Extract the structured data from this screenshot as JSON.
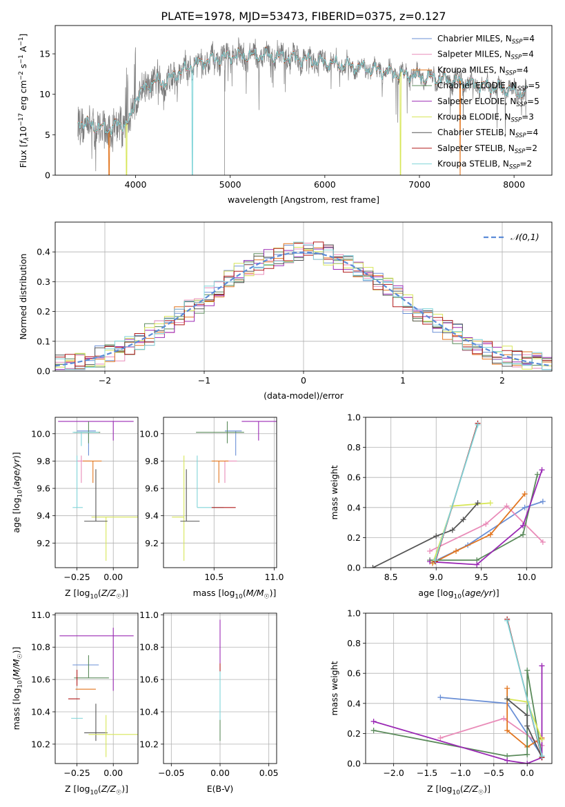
{
  "figure_title": "PLATE=1978, MJD=53473, FIBERID=0375, z=0.127",
  "colors": {
    "Chabrier MILES": "#6a8fd6",
    "Salpeter MILES": "#e98bb8",
    "Kroupa MILES": "#e2751e",
    "Chabrier ELODIE": "#5a8a5a",
    "Salpeter ELODIE": "#9a28b4",
    "Kroupa ELODIE": "#d7e657",
    "Chabrier STELIB": "#555555",
    "Salpeter STELIB": "#b01818",
    "Kroupa STELIB": "#7fd4d8"
  },
  "chart_data": [
    {
      "id": "spectrum",
      "type": "line",
      "xlabel": "wavelength [Angstrom, rest frame]",
      "ylabel": "Flux [f_λ10^−17 erg cm^−2 s^−1 A^−1]",
      "xlim": [
        3150,
        8400
      ],
      "ylim": [
        0,
        18.5
      ],
      "xticks": [
        4000,
        5000,
        6000,
        7000,
        8000
      ],
      "yticks": [
        0,
        5,
        10,
        15
      ],
      "grid": false,
      "legend_position": "top-right",
      "legend": [
        {
          "name": "Chabrier MILES",
          "nssp": "4"
        },
        {
          "name": "Salpeter MILES",
          "nssp": "4"
        },
        {
          "name": "Kroupa MILES",
          "nssp": "4"
        },
        {
          "name": "Chabrier ELODIE",
          "nssp": "5"
        },
        {
          "name": "Salpeter ELODIE",
          "nssp": "5"
        },
        {
          "name": "Kroupa ELODIE",
          "nssp": "3"
        },
        {
          "name": "Chabrier STELIB",
          "nssp": "4"
        },
        {
          "name": "Salpeter STELIB",
          "nssp": "2"
        },
        {
          "name": "Kroupa STELIB",
          "nssp": "2"
        }
      ],
      "continuum": {
        "x": [
          3390,
          3500,
          3600,
          3700,
          3800,
          3900,
          3950,
          4000,
          4100,
          4200,
          4300,
          4400,
          4600,
          4800,
          5000,
          5200,
          5400,
          5600,
          5800,
          6000,
          6200,
          6400,
          6600,
          6800,
          7000,
          7200,
          7400,
          7600,
          7800,
          8000,
          8130
        ],
        "y": [
          6.6,
          6.3,
          6.0,
          5.6,
          6.2,
          6.4,
          7.0,
          9.6,
          10.8,
          11.6,
          11.5,
          12.2,
          13.6,
          14.3,
          14.7,
          14.8,
          14.8,
          14.6,
          14.3,
          14.0,
          13.6,
          13.3,
          12.9,
          12.5,
          12.2,
          11.9,
          11.6,
          11.2,
          10.8,
          10.4,
          10.0
        ]
      },
      "model_dropouts": [
        {
          "series": "Kroupa MILES",
          "x": 3720
        },
        {
          "series": "Kroupa ELODIE",
          "x": 3905
        },
        {
          "series": "Kroupa STELIB",
          "x": 4600
        },
        {
          "series": "Kroupa ELODIE",
          "x": 6800
        },
        {
          "series": "Kroupa MILES",
          "x": 7430
        }
      ]
    },
    {
      "id": "residuals",
      "type": "step",
      "xlabel": "(data-model)/error",
      "ylabel": "Normed distribution",
      "xlim": [
        -2.5,
        2.5
      ],
      "ylim": [
        0,
        0.5
      ],
      "xticks": [
        -2,
        -1,
        0,
        1,
        2
      ],
      "yticks": [
        0.0,
        0.1,
        0.2,
        0.3,
        0.4
      ],
      "grid": true,
      "bin_width": 0.1,
      "reference_curve": {
        "label": "𝒩(0,1)",
        "style": "dashed",
        "color": "#5b8bd8"
      },
      "legend_position": "top-right"
    },
    {
      "id": "age-vs-Z",
      "type": "errorbar",
      "xlabel": "Z [log₁₀(Z/Z☉)]",
      "ylabel": "age  [log₁₀(age/yr)]",
      "xlim": [
        -0.4,
        0.17
      ],
      "ylim": [
        9.02,
        10.12
      ],
      "xticks": [
        -0.25,
        0.0
      ],
      "yticks": [
        9.2,
        9.4,
        9.6,
        9.8,
        10.0
      ],
      "grid": true,
      "points": [
        {
          "series": "Salpeter ELODIE",
          "x": 0.0,
          "y": 10.09,
          "xerr": [
            0.38,
            0.14
          ],
          "yerr": [
            0.14,
            0.0
          ]
        },
        {
          "series": "Chabrier MILES",
          "x": -0.17,
          "y": 10.02,
          "xerr": [
            0.08,
            0.05
          ],
          "yerr": [
            0.18,
            0.0
          ]
        },
        {
          "series": "Chabrier ELODIE",
          "x": -0.17,
          "y": 10.01,
          "xerr": [
            0.1,
            0.08
          ],
          "yerr": [
            0.08,
            0.08
          ]
        },
        {
          "series": "Kroupa STELIB",
          "x": -0.22,
          "y": 10.01,
          "xerr": [
            0.06,
            0.12
          ],
          "yerr": [
            0.1,
            0.0
          ]
        },
        {
          "series": "Salpeter MILES",
          "x": -0.22,
          "y": 9.8,
          "xerr": [
            0.03,
            0.06
          ],
          "yerr": [
            0.16,
            0.04
          ]
        },
        {
          "series": "Kroupa MILES",
          "x": -0.14,
          "y": 9.8,
          "xerr": [
            0.07,
            0.06
          ],
          "yerr": [
            0.16,
            0.0
          ]
        },
        {
          "series": "Kroupa ELODIE",
          "x": -0.05,
          "y": 9.39,
          "xerr": [
            0.1,
            0.22
          ],
          "yerr": [
            0.32,
            0.0
          ]
        },
        {
          "series": "Chabrier STELIB",
          "x": -0.12,
          "y": 9.36,
          "xerr": [
            0.08,
            0.08
          ],
          "yerr": [
            0.0,
            0.38
          ]
        },
        {
          "series": "Kroupa STELIB",
          "x": -0.25,
          "y": 9.46,
          "xerr": [
            0.03,
            0.04
          ],
          "yerr": [
            0.0,
            0.38
          ]
        }
      ]
    },
    {
      "id": "age-vs-mass",
      "type": "errorbar",
      "xlabel": "mass [log₁₀(M/M☉)]",
      "ylabel": "",
      "xlim": [
        10.08,
        11.02
      ],
      "ylim": [
        9.02,
        10.12
      ],
      "xticks": [
        10.5,
        11.0
      ],
      "yticks": [
        9.2,
        9.4,
        9.6,
        9.8,
        10.0
      ],
      "grid": true,
      "points": [
        {
          "series": "Salpeter ELODIE",
          "x": 10.87,
          "y": 10.09,
          "xerr": [
            0.14,
            0.22
          ],
          "yerr": [
            0.14,
            0.0
          ]
        },
        {
          "series": "Chabrier MILES",
          "x": 10.68,
          "y": 10.02,
          "xerr": [
            0.09,
            0.05
          ],
          "yerr": [
            0.18,
            0.0
          ]
        },
        {
          "series": "Chabrier ELODIE",
          "x": 10.61,
          "y": 10.01,
          "xerr": [
            0.26,
            0.14
          ],
          "yerr": [
            0.08,
            0.08
          ]
        },
        {
          "series": "Salpeter MILES",
          "x": 10.59,
          "y": 9.8,
          "xerr": [
            0.0,
            0.1
          ],
          "yerr": [
            0.16,
            0.0
          ]
        },
        {
          "series": "Kroupa MILES",
          "x": 10.54,
          "y": 9.8,
          "xerr": [
            0.06,
            0.08
          ],
          "yerr": [
            0.16,
            0.0
          ]
        },
        {
          "series": "Kroupa ELODIE",
          "x": 10.25,
          "y": 9.39,
          "xerr": [
            0.1,
            0.0
          ],
          "yerr": [
            0.32,
            0.45
          ]
        },
        {
          "series": "Chabrier STELIB",
          "x": 10.27,
          "y": 9.36,
          "xerr": [
            0.05,
            0.11
          ],
          "yerr": [
            0.0,
            0.38
          ]
        },
        {
          "series": "Kroupa STELIB",
          "x": 10.36,
          "y": 9.46,
          "xerr": [
            0.0,
            0.22
          ],
          "yerr": [
            0.0,
            0.38
          ]
        },
        {
          "series": "Salpeter STELIB",
          "x": 10.48,
          "y": 9.46,
          "xerr": [
            0.0,
            0.2
          ],
          "yerr": [
            0.0,
            0.0
          ]
        }
      ]
    },
    {
      "id": "weight-vs-age",
      "type": "line",
      "xlabel": "age  [log₁₀(age/yr)]",
      "ylabel": "mass weight",
      "xlim": [
        8.22,
        10.28
      ],
      "ylim": [
        0.0,
        1.0
      ],
      "xticks": [
        8.5,
        9.0,
        9.5,
        10.0
      ],
      "yticks": [
        0.0,
        0.2,
        0.4,
        0.6,
        0.8,
        1.0
      ],
      "grid": true,
      "series": [
        {
          "name": "Chabrier MILES",
          "x": [
            8.97,
            9.35,
            9.98,
            10.18
          ],
          "y": [
            0.04,
            0.15,
            0.4,
            0.44
          ]
        },
        {
          "name": "Salpeter MILES",
          "x": [
            8.93,
            9.55,
            9.78,
            10.18
          ],
          "y": [
            0.11,
            0.29,
            0.41,
            0.17
          ]
        },
        {
          "name": "Kroupa MILES",
          "x": [
            8.96,
            9.22,
            9.6,
            9.98
          ],
          "y": [
            0.03,
            0.11,
            0.22,
            0.49
          ]
        },
        {
          "name": "Chabrier ELODIE",
          "x": [
            8.93,
            9.45,
            9.96,
            10.12
          ],
          "y": [
            0.05,
            0.05,
            0.22,
            0.62
          ]
        },
        {
          "name": "Salpeter ELODIE",
          "x": [
            8.93,
            9.45,
            9.96,
            10.17
          ],
          "y": [
            0.04,
            0.02,
            0.28,
            0.65
          ]
        },
        {
          "name": "Kroupa ELODIE",
          "x": [
            8.97,
            9.18,
            9.6
          ],
          "y": [
            0.04,
            0.41,
            0.43
          ]
        },
        {
          "name": "Chabrier STELIB",
          "x": [
            8.3,
            9.0,
            9.18,
            9.3,
            9.46
          ],
          "y": [
            0.0,
            0.21,
            0.25,
            0.32,
            0.43
          ]
        },
        {
          "name": "Salpeter STELIB",
          "x": [
            8.99,
            9.46
          ],
          "y": [
            0.04,
            0.96
          ]
        },
        {
          "name": "Kroupa STELIB",
          "x": [
            8.99,
            9.46
          ],
          "y": [
            0.05,
            0.95
          ]
        }
      ]
    },
    {
      "id": "mass-vs-Z",
      "type": "errorbar",
      "xlabel": "Z [log₁₀(Z/Z☉)]",
      "ylabel": "mass [log₁₀(M/M☉)]",
      "xlim": [
        -0.4,
        0.17
      ],
      "ylim": [
        10.08,
        11.01
      ],
      "xticks": [
        -0.25,
        0.0
      ],
      "yticks": [
        10.2,
        10.4,
        10.6,
        10.8,
        11.0
      ],
      "grid": true,
      "points": [
        {
          "series": "Salpeter ELODIE",
          "x": 0.0,
          "y": 10.87,
          "xerr": [
            0.37,
            0.14
          ],
          "yerr": [
            0.34,
            0.05
          ]
        },
        {
          "series": "Chabrier MILES",
          "x": -0.2,
          "y": 10.69,
          "xerr": [
            0.08,
            0.1
          ],
          "yerr": [
            0.0,
            0.0
          ]
        },
        {
          "series": "Chabrier ELODIE",
          "x": -0.17,
          "y": 10.61,
          "xerr": [
            0.1,
            0.14
          ],
          "yerr": [
            0.0,
            0.14
          ]
        },
        {
          "series": "Salpeter STELIB",
          "x": -0.25,
          "y": 10.62,
          "xerr": [
            0.0,
            0.0
          ],
          "yerr": [
            0.06,
            0.04
          ]
        },
        {
          "series": "Kroupa MILES",
          "x": -0.2,
          "y": 10.54,
          "xerr": [
            0.06,
            0.08
          ],
          "yerr": [
            0.0,
            0.0
          ]
        },
        {
          "series": "Salpeter STELIB",
          "x": -0.27,
          "y": 10.48,
          "xerr": [
            0.04,
            0.04
          ],
          "yerr": [
            0.0,
            0.0
          ]
        },
        {
          "series": "Kroupa STELIB",
          "x": -0.26,
          "y": 10.36,
          "xerr": [
            0.03,
            0.05
          ],
          "yerr": [
            0.0,
            0.0
          ]
        },
        {
          "series": "Chabrier STELIB",
          "x": -0.12,
          "y": 10.27,
          "xerr": [
            0.08,
            0.08
          ],
          "yerr": [
            0.05,
            0.18
          ]
        },
        {
          "series": "Kroupa ELODIE",
          "x": -0.05,
          "y": 10.26,
          "xerr": [
            0.12,
            0.22
          ],
          "yerr": [
            0.14,
            0.12
          ]
        }
      ]
    },
    {
      "id": "mass-vs-ebv",
      "type": "errorbar",
      "xlabel": "E(B-V)",
      "ylabel": "",
      "xlim": [
        -0.058,
        0.058
      ],
      "ylim": [
        10.08,
        11.01
      ],
      "xticks": [
        -0.05,
        0.0,
        0.05
      ],
      "yticks": [
        10.2,
        10.4,
        10.6,
        10.8,
        11.0
      ],
      "grid": true,
      "points": [
        {
          "series": "Salpeter ELODIE",
          "x": 0.0,
          "y": 10.7,
          "xerr": [
            0.0,
            0.0
          ],
          "yerr": [
            0.0,
            0.27
          ]
        },
        {
          "series": "Salpeter STELIB",
          "x": 0.0,
          "y": 10.7,
          "xerr": [
            0.0,
            0.0
          ],
          "yerr": [
            0.05,
            0.0
          ]
        },
        {
          "series": "Kroupa STELIB",
          "x": 0.0,
          "y": 10.55,
          "xerr": [
            0.0,
            0.0
          ],
          "yerr": [
            0.2,
            0.1
          ]
        },
        {
          "series": "Chabrier ELODIE",
          "x": 0.0,
          "y": 10.35,
          "xerr": [
            0.0,
            0.0
          ],
          "yerr": [
            0.13,
            0.0
          ]
        }
      ]
    },
    {
      "id": "weight-vs-Z",
      "type": "line",
      "xlabel": "Z [log₁₀(Z/Z☉)]",
      "ylabel": "mass weight",
      "xlim": [
        -2.42,
        0.37
      ],
      "ylim": [
        0.0,
        1.0
      ],
      "xticks": [
        -2.0,
        -1.5,
        -1.0,
        -0.5,
        0.0
      ],
      "yticks": [
        0.0,
        0.2,
        0.4,
        0.6,
        0.8,
        1.0
      ],
      "grid": true,
      "series": [
        {
          "name": "Chabrier MILES",
          "x": [
            -1.3,
            -0.3,
            0.22
          ],
          "y": [
            0.44,
            0.4,
            0.05
          ]
        },
        {
          "name": "Salpeter MILES",
          "x": [
            -1.3,
            -0.35,
            0.22
          ],
          "y": [
            0.17,
            0.3,
            0.12
          ]
        },
        {
          "name": "Kroupa MILES",
          "x": [
            -0.3,
            -0.3,
            0.0,
            0.22
          ],
          "y": [
            0.5,
            0.22,
            0.11,
            0.17
          ]
        },
        {
          "name": "Chabrier ELODIE",
          "x": [
            -2.3,
            -0.3,
            0.0,
            0.0,
            0.22
          ],
          "y": [
            0.22,
            0.05,
            0.06,
            0.62,
            0.05
          ]
        },
        {
          "name": "Salpeter ELODIE",
          "x": [
            -2.3,
            -0.3,
            0.0,
            0.22,
            0.22
          ],
          "y": [
            0.28,
            0.02,
            0.0,
            0.04,
            0.65
          ]
        },
        {
          "name": "Kroupa ELODIE",
          "x": [
            -0.3,
            0.0,
            0.22
          ],
          "y": [
            0.43,
            0.41,
            0.16
          ]
        },
        {
          "name": "Chabrier STELIB",
          "x": [
            -0.3,
            0.0,
            0.0,
            0.22
          ],
          "y": [
            0.43,
            0.32,
            0.25,
            0.04
          ]
        },
        {
          "name": "Salpeter STELIB",
          "x": [
            -0.3,
            0.22
          ],
          "y": [
            0.96,
            0.04
          ]
        },
        {
          "name": "Kroupa STELIB",
          "x": [
            -0.3,
            0.22
          ],
          "y": [
            0.95,
            0.05
          ]
        }
      ]
    }
  ]
}
